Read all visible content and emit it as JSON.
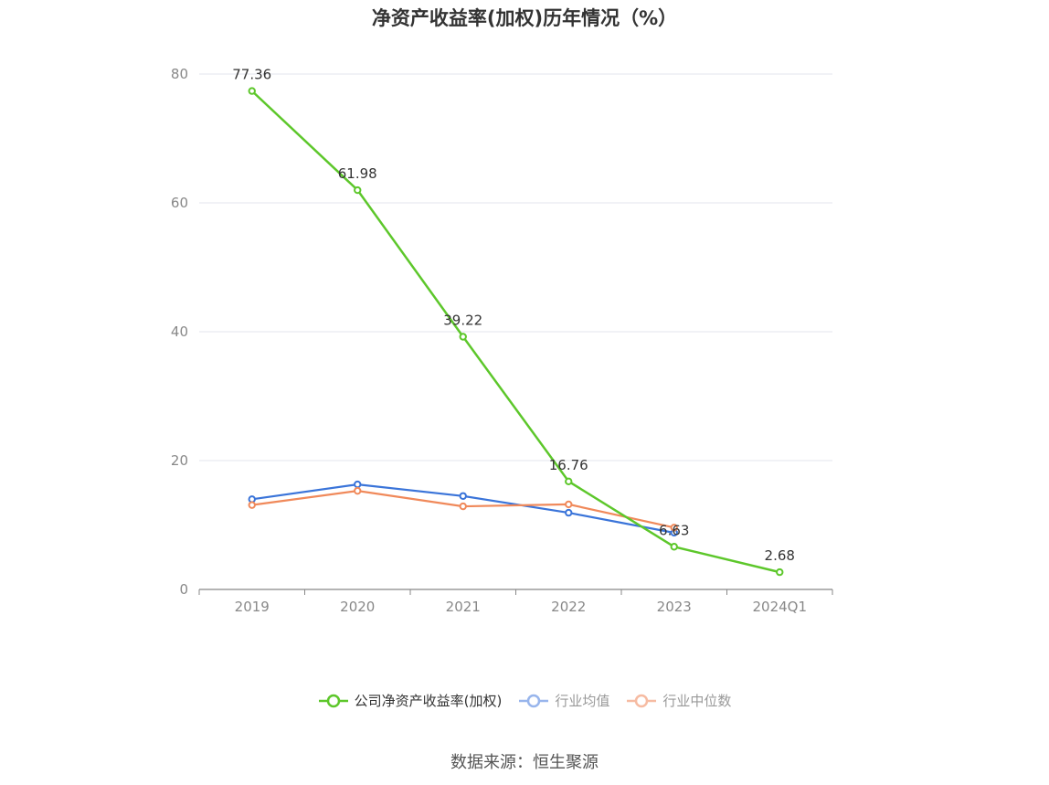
{
  "chart_data": {
    "type": "line",
    "title": "净资产收益率(加权)历年情况（%）",
    "categories": [
      "2019",
      "2020",
      "2021",
      "2022",
      "2023",
      "2024Q1"
    ],
    "ylim": [
      0,
      80
    ],
    "yticks": [
      "0",
      "20",
      "40",
      "60",
      "80"
    ],
    "grid": true,
    "legend_position": "bottom",
    "series": [
      {
        "name": "公司净资产收益率(加权)",
        "color": "#5dc72b",
        "values": [
          77.36,
          61.98,
          39.22,
          16.76,
          6.63,
          2.68
        ],
        "labels": [
          "77.36",
          "61.98",
          "39.22",
          "16.76",
          "6.63",
          "2.68"
        ]
      },
      {
        "name": "行业均值",
        "color": "#3a74d9",
        "legend_color": "#98b5ec",
        "values": [
          14.0,
          16.3,
          14.5,
          11.9,
          8.8,
          null
        ]
      },
      {
        "name": "行业中位数",
        "color": "#f0895a",
        "legend_color": "#f6bba2",
        "values": [
          13.1,
          15.3,
          12.9,
          13.2,
          9.6,
          null
        ]
      }
    ]
  },
  "source": "数据来源：恒生聚源"
}
